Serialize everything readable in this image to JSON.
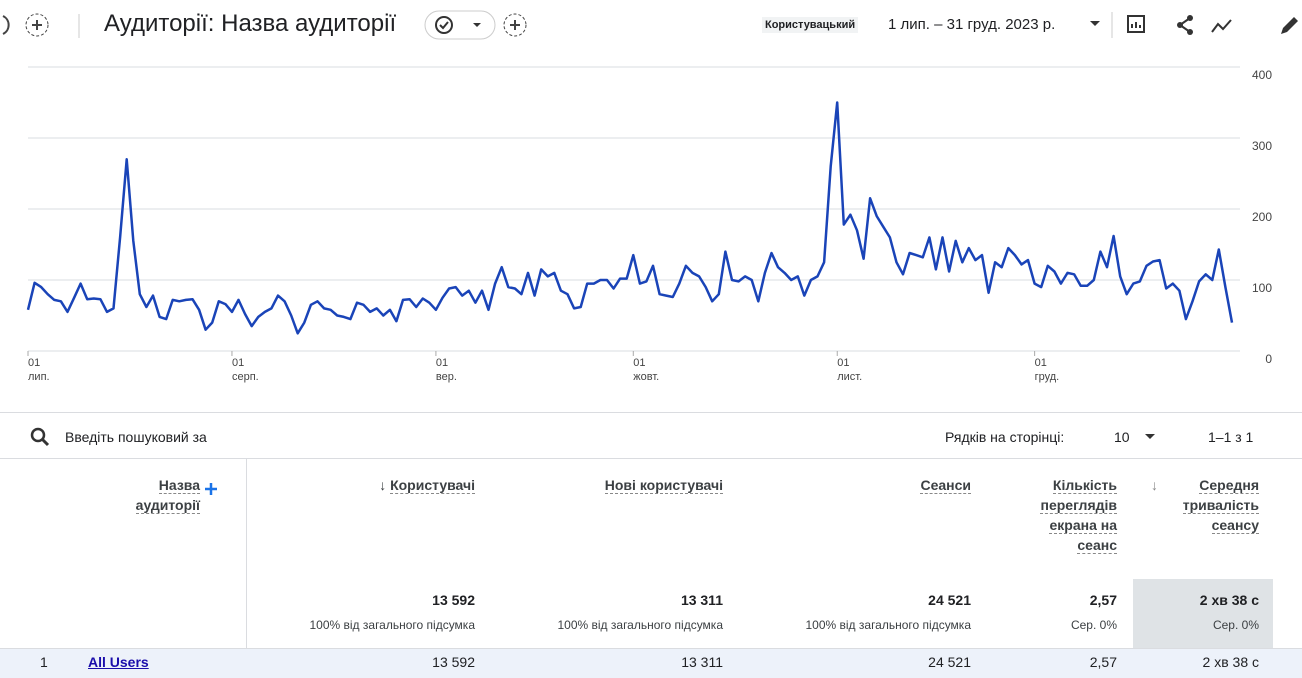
{
  "toolbar": {
    "title": "Аудиторії: Назва аудиторії",
    "comparison": "Користувацький",
    "date_range": "1 лип. – 31 груд. 2023 р."
  },
  "chart_data": {
    "type": "line",
    "color": "#1a44b8",
    "grid": true,
    "xlim": [
      0,
      183
    ],
    "xticks": [
      {
        "value": 0,
        "label": "01",
        "sublabel": "лип."
      },
      {
        "value": 31,
        "label": "01",
        "sublabel": "серп."
      },
      {
        "value": 62,
        "label": "01",
        "sublabel": "вер."
      },
      {
        "value": 92,
        "label": "01",
        "sublabel": "жовт."
      },
      {
        "value": 123,
        "label": "01",
        "sublabel": "лист."
      },
      {
        "value": 153,
        "label": "01",
        "sublabel": "груд."
      }
    ],
    "ylim": [
      0,
      400
    ],
    "yticks": [
      0,
      100,
      200,
      300,
      400
    ],
    "values": [
      58,
      96,
      90,
      80,
      72,
      70,
      55,
      75,
      95,
      73,
      74,
      73,
      55,
      60,
      160,
      270,
      155,
      80,
      62,
      78,
      48,
      45,
      72,
      70,
      72,
      73,
      58,
      30,
      40,
      70,
      66,
      55,
      72,
      52,
      35,
      48,
      55,
      60,
      78,
      70,
      50,
      25,
      40,
      65,
      70,
      60,
      58,
      50,
      48,
      45,
      68,
      65,
      55,
      60,
      50,
      58,
      42,
      72,
      73,
      62,
      74,
      68,
      58,
      75,
      88,
      90,
      78,
      85,
      68,
      85,
      58,
      95,
      118,
      90,
      88,
      80,
      110,
      78,
      115,
      105,
      110,
      85,
      80,
      60,
      62,
      95,
      95,
      100,
      100,
      88,
      102,
      102,
      135,
      95,
      98,
      120,
      80,
      78,
      76,
      95,
      120,
      110,
      105,
      90,
      70,
      80,
      140,
      100,
      98,
      105,
      100,
      70,
      110,
      138,
      118,
      110,
      100,
      105,
      78,
      100,
      105,
      125,
      260,
      350,
      178,
      192,
      170,
      130,
      215,
      190,
      175,
      160,
      125,
      108,
      138,
      135,
      132,
      160,
      115,
      160,
      112,
      155,
      125,
      145,
      128,
      135,
      82,
      125,
      118,
      145,
      135,
      122,
      128,
      95,
      90,
      120,
      112,
      95,
      110,
      108,
      92,
      92,
      100,
      140,
      118,
      162,
      105,
      80,
      95,
      98,
      120,
      126,
      128,
      88,
      95,
      85,
      45,
      70,
      98,
      108,
      100,
      143,
      90,
      40
    ]
  },
  "table": {
    "search_placeholder": "Введіть пошуковий за",
    "rows_per_page_label": "Рядків на сторінці:",
    "rows_per_page": "10",
    "pagination": "1–1 з 1",
    "columns": [
      "Назва аудиторії",
      "Користувачі",
      "Нові користувачі",
      "Сеанси",
      "Кількість переглядів екрана на сеанс",
      "Середня тривалість сеансу"
    ],
    "totals": [
      {
        "value": "13 592",
        "note": "100% від загального підсумка"
      },
      {
        "value": "13 311",
        "note": "100% від загального підсумка"
      },
      {
        "value": "24 521",
        "note": "100% від загального підсумка"
      },
      {
        "value": "2,57",
        "note": "Сер. 0%"
      },
      {
        "value": "2 хв 38 с",
        "note": "Сер. 0%"
      }
    ],
    "rows": [
      [
        "1",
        "All Users",
        "13 592",
        "13 311",
        "24 521",
        "2,57",
        "2 хв 38 с"
      ]
    ]
  }
}
